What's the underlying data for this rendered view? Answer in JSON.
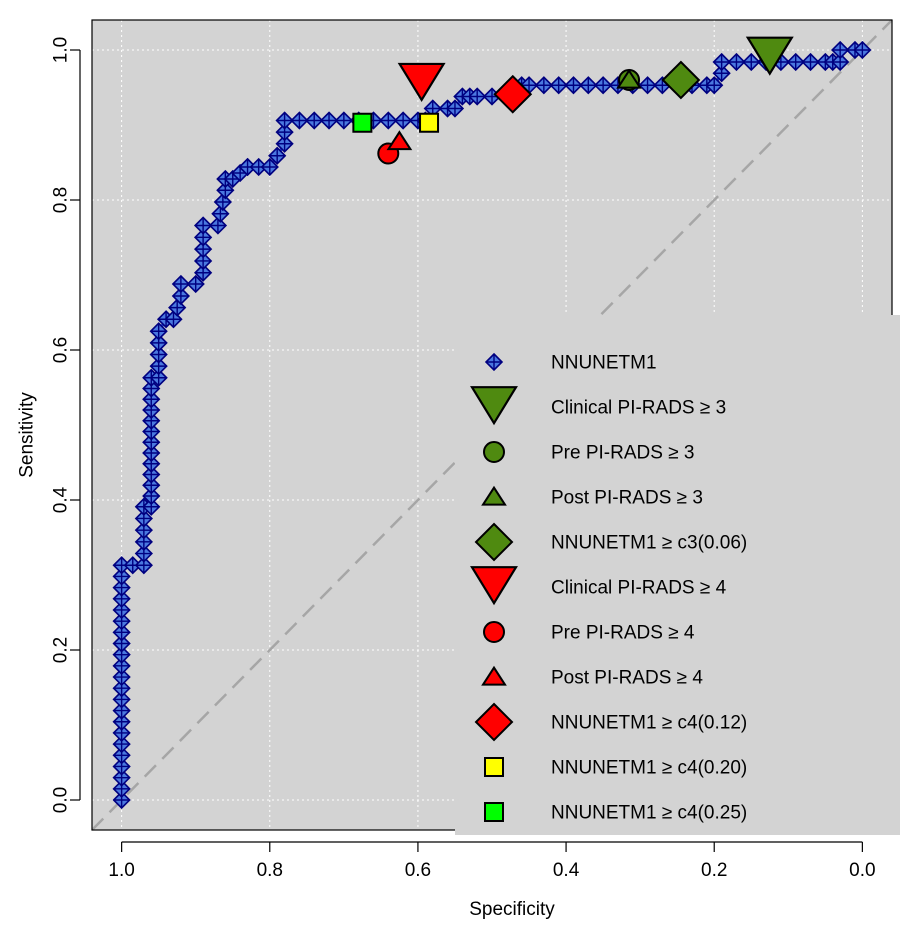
{
  "chart_data": {
    "type": "line",
    "title": "",
    "xlabel": "Specificity",
    "ylabel": "Sensitivity",
    "xlim": [
      1.04,
      -0.04
    ],
    "ylim": [
      -0.04,
      1.04
    ],
    "x_reversed": true,
    "x_ticks": [
      1.0,
      0.8,
      0.6,
      0.4,
      0.2,
      0.0
    ],
    "x_tick_labels": [
      "1.0",
      "0.8",
      "0.6",
      "0.4",
      "0.2",
      "0.0"
    ],
    "y_ticks": [
      0.0,
      0.2,
      0.4,
      0.6,
      0.8,
      1.0
    ],
    "y_tick_labels": [
      "0.0",
      "0.2",
      "0.4",
      "0.6",
      "0.8",
      "1.0"
    ],
    "grid": true,
    "reference_line": {
      "from": [
        1.0,
        0.0
      ],
      "to": [
        0.0,
        1.0
      ],
      "style": "dashed",
      "color": "#a6a6a6"
    },
    "legend_position": "bottom-right",
    "colors": {
      "panel_bg": "#d3d3d3",
      "curve_line": "#1f3fd0",
      "curve_marker": "#000080",
      "grid": "#ffffff"
    },
    "series": [
      {
        "name": "NNUNETM1",
        "kind": "roc_curve",
        "marker": "plus-diamond",
        "color": "#000080",
        "x": [
          1.0,
          1.0,
          0.985,
          0.97,
          0.97,
          0.96,
          0.96,
          0.95,
          0.95,
          0.94,
          0.93,
          0.92,
          0.92,
          0.9,
          0.89,
          0.89,
          0.87,
          0.86,
          0.86,
          0.85,
          0.83,
          0.83,
          0.8,
          0.79,
          0.78,
          0.78,
          0.76,
          0.74,
          0.72,
          0.7,
          0.68,
          0.66,
          0.64,
          0.62,
          0.6,
          0.59,
          0.58,
          0.56,
          0.55,
          0.54,
          0.53,
          0.52,
          0.5,
          0.48,
          0.46,
          0.45,
          0.43,
          0.41,
          0.39,
          0.37,
          0.35,
          0.33,
          0.31,
          0.29,
          0.27,
          0.25,
          0.23,
          0.21,
          0.2,
          0.19,
          0.19,
          0.17,
          0.15,
          0.13,
          0.11,
          0.09,
          0.07,
          0.05,
          0.04,
          0.03,
          0.03,
          0.01,
          0.0
        ],
        "y": [
          0.0,
          0.313,
          0.313,
          0.313,
          0.391,
          0.391,
          0.563,
          0.563,
          0.625,
          0.641,
          0.641,
          0.672,
          0.688,
          0.688,
          0.703,
          0.766,
          0.766,
          0.813,
          0.828,
          0.828,
          0.844,
          0.844,
          0.844,
          0.859,
          0.875,
          0.906,
          0.906,
          0.906,
          0.906,
          0.906,
          0.906,
          0.906,
          0.906,
          0.906,
          0.906,
          0.906,
          0.922,
          0.922,
          0.922,
          0.938,
          0.938,
          0.938,
          0.938,
          0.938,
          0.953,
          0.953,
          0.953,
          0.953,
          0.953,
          0.953,
          0.953,
          0.953,
          0.953,
          0.953,
          0.953,
          0.953,
          0.953,
          0.953,
          0.953,
          0.969,
          0.984,
          0.984,
          0.984,
          0.984,
          0.984,
          0.984,
          0.984,
          0.984,
          0.984,
          0.984,
          1.0,
          1.0,
          1.0
        ]
      },
      {
        "name": "Clinical PI-RADS ≥ 3",
        "kind": "operating_point",
        "marker": "triangle-down-large",
        "color": "#4f8a10",
        "x": [
          0.125
        ],
        "y": [
          0.99
        ]
      },
      {
        "name": "Pre PI-RADS ≥ 3",
        "kind": "operating_point",
        "marker": "circle",
        "color": "#4f8a10",
        "x": [
          0.315
        ],
        "y": [
          0.96
        ]
      },
      {
        "name": "Post PI-RADS ≥ 3",
        "kind": "operating_point",
        "marker": "triangle-up",
        "color": "#4f8a10",
        "x": [
          0.315
        ],
        "y": [
          0.96
        ]
      },
      {
        "name": "NNUNETM1 ≥ c3(0.06)",
        "kind": "operating_point",
        "marker": "diamond-large",
        "color": "#4f8a10",
        "x": [
          0.245
        ],
        "y": [
          0.96
        ]
      },
      {
        "name": "Clinical PI-RADS ≥ 4",
        "kind": "operating_point",
        "marker": "triangle-down-large",
        "color": "#ff0000",
        "x": [
          0.595
        ],
        "y": [
          0.955
        ]
      },
      {
        "name": "Pre PI-RADS ≥ 4",
        "kind": "operating_point",
        "marker": "circle",
        "color": "#ff0000",
        "x": [
          0.64
        ],
        "y": [
          0.862
        ]
      },
      {
        "name": "Post PI-RADS ≥ 4",
        "kind": "operating_point",
        "marker": "triangle-up",
        "color": "#ff0000",
        "x": [
          0.625
        ],
        "y": [
          0.878
        ]
      },
      {
        "name": "NNUNETM1 ≥ c4(0.12)",
        "kind": "operating_point",
        "marker": "diamond-large",
        "color": "#ff0000",
        "x": [
          0.472
        ],
        "y": [
          0.941
        ]
      },
      {
        "name": "NNUNETM1 ≥ c4(0.20)",
        "kind": "operating_point",
        "marker": "square",
        "color": "#ffff00",
        "x": [
          0.585
        ],
        "y": [
          0.903
        ]
      },
      {
        "name": "NNUNETM1 ≥ c4(0.25)",
        "kind": "operating_point",
        "marker": "square",
        "color": "#00ff00",
        "x": [
          0.675
        ],
        "y": [
          0.903
        ]
      }
    ]
  }
}
